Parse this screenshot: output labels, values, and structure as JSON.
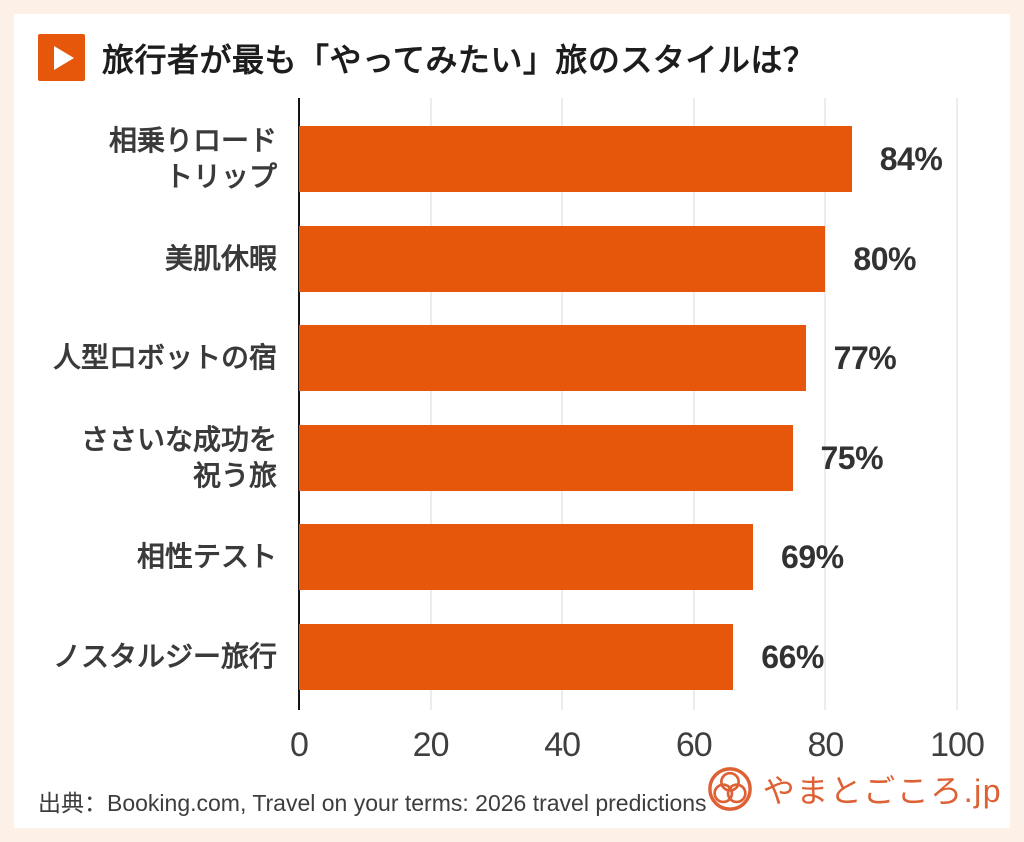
{
  "title": "旅行者が最も「やってみたい」旅のスタイルは？",
  "chart_data": {
    "type": "bar",
    "orientation": "horizontal",
    "title": "旅行者が最も「やってみたい」旅のスタイルは？",
    "categories": [
      "相乗りロードトリップ",
      "美肌休暇",
      "人型ロボットの宿",
      "ささいな成功を祝う旅",
      "相性テスト",
      "ノスタルジー旅行"
    ],
    "category_lines": [
      [
        "相乗りロード",
        "トリップ"
      ],
      [
        "美肌休暇"
      ],
      [
        "人型ロボットの宿"
      ],
      [
        "ささいな成功を",
        "祝う旅"
      ],
      [
        "相性テスト"
      ],
      [
        "ノスタルジー旅行"
      ]
    ],
    "values": [
      84,
      80,
      77,
      75,
      69,
      66
    ],
    "value_labels": [
      "84%",
      "80%",
      "77%",
      "75%",
      "69%",
      "66%"
    ],
    "xlabel": "",
    "ylabel": "",
    "xlim": [
      0,
      100
    ],
    "xticks": [
      0,
      20,
      40,
      60,
      80,
      100
    ],
    "grid": "vertical-light",
    "legend": "none",
    "bar_color": "#e6570b"
  },
  "source": "出典：Booking.com, Travel on your terms: 2026 travel predictions",
  "logo": {
    "text": "やまとごころ.jp"
  },
  "icons": {
    "header_badge": "play-icon",
    "logo_emblem": "three-ring-crest-icon"
  },
  "colors": {
    "accent": "#e6570b",
    "bar": "#e6570b",
    "frame_background": "#fdf0e7",
    "panel_background": "#ffffff",
    "axis_line": "#141414",
    "gridline": "#ececec",
    "text_dark": "#1d1d1d",
    "logo_orange": "#dd6134"
  }
}
